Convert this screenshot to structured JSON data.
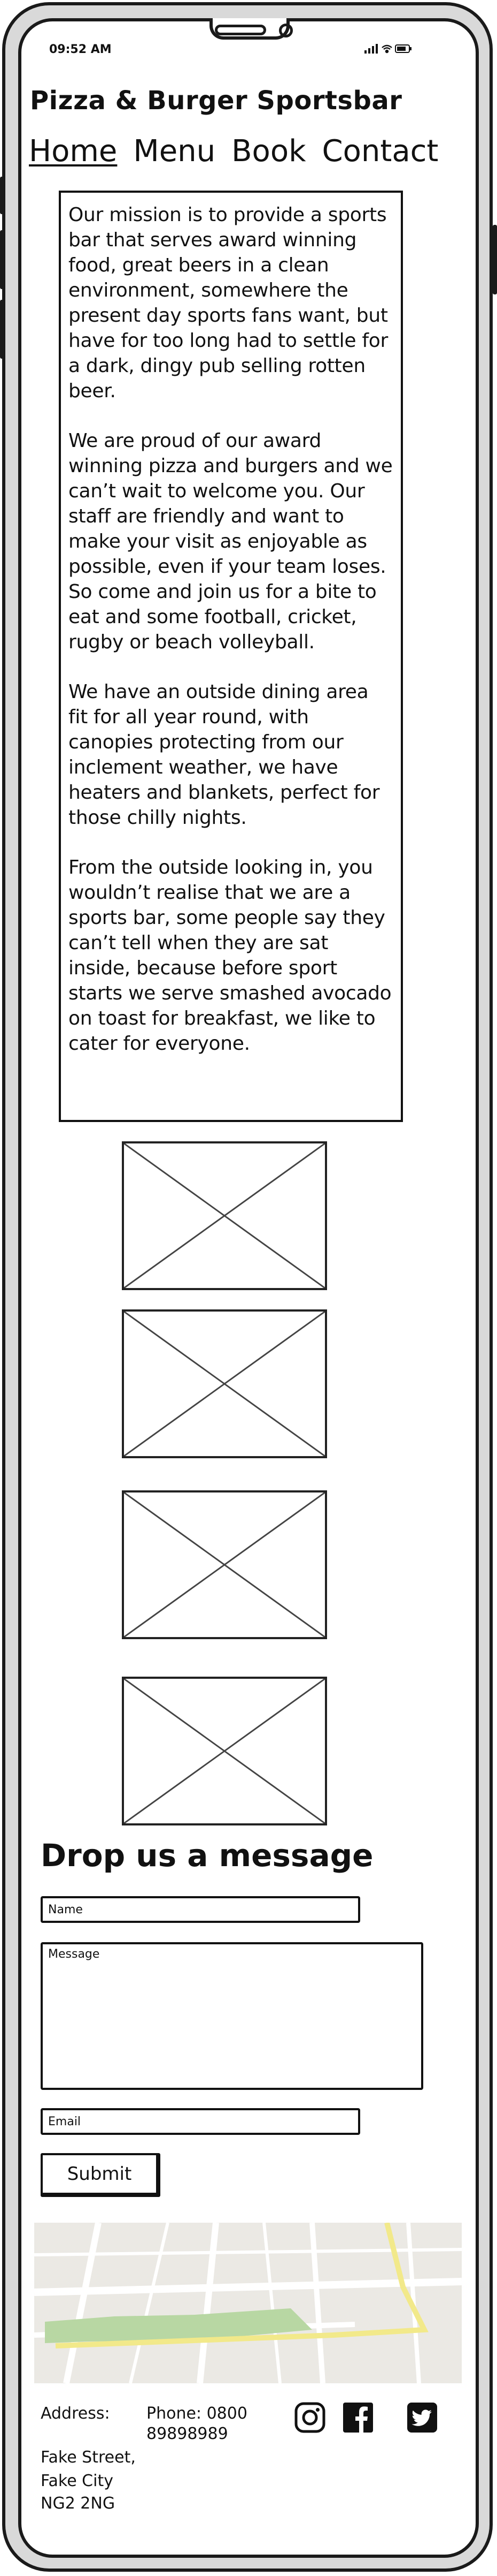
{
  "status_bar": {
    "time": "09:52 AM"
  },
  "header": {
    "title": "Pizza & Burger Sportsbar"
  },
  "nav": {
    "items": [
      {
        "label": "Home",
        "active": true
      },
      {
        "label": "Menu",
        "active": false
      },
      {
        "label": "Book",
        "active": false
      },
      {
        "label": "Contact",
        "active": false
      }
    ]
  },
  "mission": {
    "paragraphs": [
      "Our mission is to provide a sports bar that serves award winning food, great beers in a clean environment, somewhere the present day sports fans want, but have for too long had to settle for a dark, dingy pub selling rotten beer.",
      "We are proud of our award winning pizza and burgers and we can’t wait to welcome you. Our staff are friendly and want to make your visit as enjoyable as possible, even if your team loses. So come and join us for a bite to eat and some football, cricket, rugby or beach volleyball.",
      "We have an outside dining area fit for all year round, with canopies protecting from our inclement weather, we have heaters and blankets, perfect for those chilly nights.",
      "From the outside looking in, you wouldn’t realise that we are a sports bar, some people say they can’t tell when they are sat inside, because before sport starts we serve smashed avocado on toast for breakfast, we like to cater for everyone."
    ]
  },
  "form": {
    "heading": "Drop us a message",
    "name_placeholder": "Name",
    "message_placeholder": "Message",
    "email_placeholder": "Email",
    "submit_label": "Submit"
  },
  "footer": {
    "address_label": "Address:",
    "phone_line1": "Phone: 0800",
    "phone_line2": "89898989",
    "address_lines": [
      "Fake Street,",
      "Fake City",
      "NG2 2NG"
    ],
    "social_icons": [
      "instagram-icon",
      "facebook-icon",
      "twitter-icon"
    ]
  },
  "colors": {
    "frame": "#d9d9d9",
    "ink": "#111111",
    "map_bg": "#ebe9e4",
    "map_park": "#b8d7a3",
    "map_road_major": "#f2e98a"
  }
}
